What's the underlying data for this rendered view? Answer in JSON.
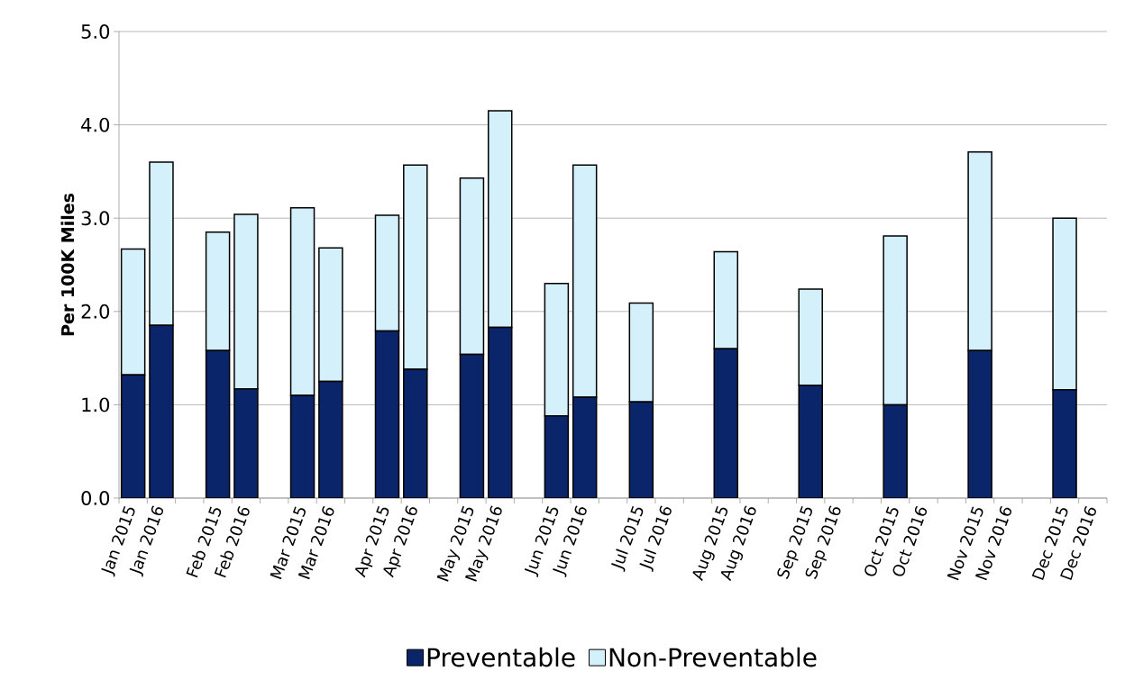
{
  "chart_data": {
    "type": "bar",
    "stacked": true,
    "ylabel": "Per 100K Miles",
    "categories": [
      "Jan 2015",
      "Jan 2016",
      null,
      "Feb 2015",
      "Feb 2016",
      null,
      "Mar 2015",
      "Mar 2016",
      null,
      "Apr 2015",
      "Apr 2016",
      null,
      "May 2015",
      "May 2016",
      null,
      "Jun 2015",
      "Jun 2016",
      null,
      "Jul 2015",
      "Jul 2016",
      null,
      "Aug 2015",
      "Aug 2016",
      null,
      "Sep 2015",
      "Sep 2016",
      null,
      "Oct 2015",
      "Oct 2016",
      null,
      "Nov 2015",
      "Nov 2016",
      null,
      "Dec 2015",
      "Dec 2016"
    ],
    "series": [
      {
        "name": "Preventable",
        "color": "#0a2569",
        "values": [
          1.32,
          1.85,
          null,
          1.58,
          1.17,
          null,
          1.1,
          1.25,
          null,
          1.79,
          1.38,
          null,
          1.54,
          1.83,
          null,
          0.88,
          1.08,
          null,
          1.03,
          null,
          null,
          1.6,
          null,
          null,
          1.21,
          null,
          null,
          1.0,
          null,
          null,
          1.58,
          null,
          null,
          1.16,
          null
        ]
      },
      {
        "name": "Non-Preventable",
        "color": "#d4f0fb",
        "values": [
          1.35,
          1.75,
          null,
          1.27,
          1.87,
          null,
          2.01,
          1.43,
          null,
          1.24,
          2.19,
          null,
          1.89,
          2.32,
          null,
          1.42,
          2.49,
          null,
          1.06,
          null,
          null,
          1.04,
          null,
          null,
          1.03,
          null,
          null,
          1.81,
          null,
          null,
          2.13,
          null,
          null,
          1.84,
          null
        ]
      }
    ],
    "ylim": [
      0,
      5
    ],
    "yticks": [
      {
        "value": 0,
        "label": "0.0"
      },
      {
        "value": 1,
        "label": "1.0"
      },
      {
        "value": 2,
        "label": "2.0"
      },
      {
        "value": 3,
        "label": "3.0"
      },
      {
        "value": 4,
        "label": "4.0"
      },
      {
        "value": 5,
        "label": "5.0"
      }
    ],
    "grid": "y",
    "legend": "bottom"
  }
}
